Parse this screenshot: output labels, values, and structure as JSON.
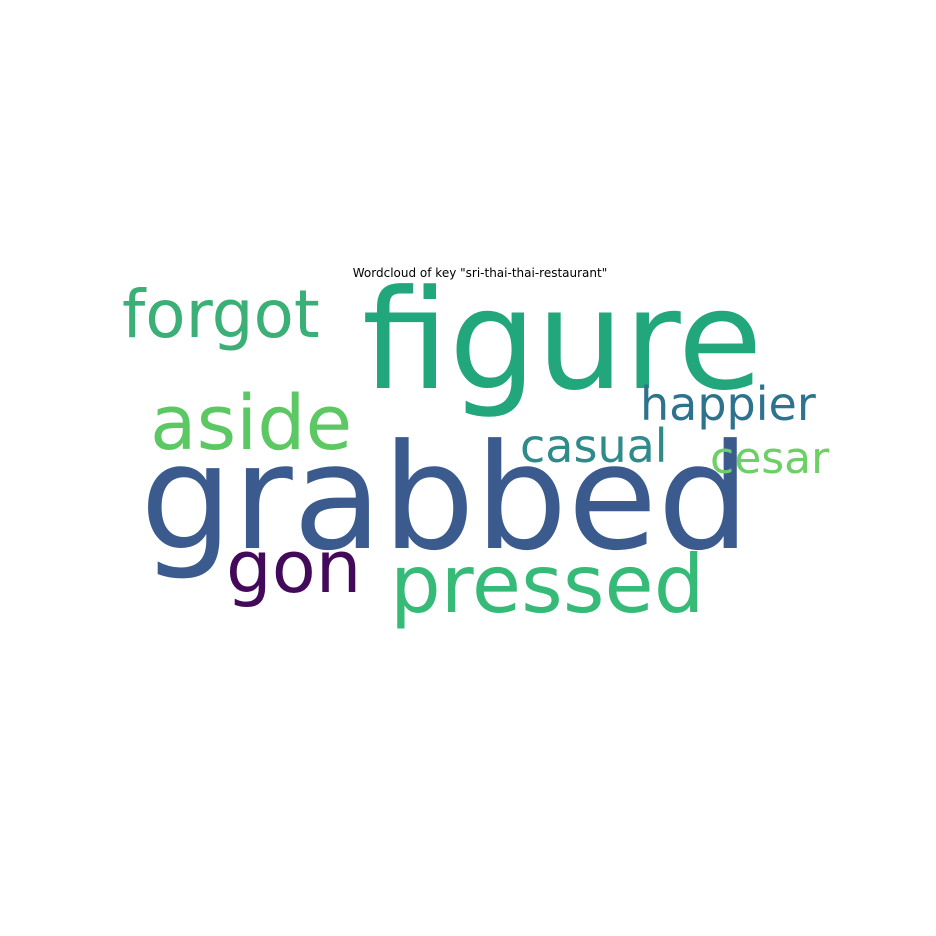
{
  "chart_data": {
    "type": "wordcloud",
    "title": "Wordcloud of key \"sri-thai-thai-restaurant\"",
    "background": "#ffffff",
    "words": [
      {
        "text": "grabbed",
        "weight": 1.0,
        "color": "#3b5b8e"
      },
      {
        "text": "figure",
        "weight": 0.95,
        "color": "#22a67c"
      },
      {
        "text": "pressed",
        "weight": 0.58,
        "color": "#35bb77"
      },
      {
        "text": "aside",
        "weight": 0.55,
        "color": "#5cc863"
      },
      {
        "text": "gon",
        "weight": 0.52,
        "color": "#440a5a"
      },
      {
        "text": "forgot",
        "weight": 0.48,
        "color": "#3aaf76"
      },
      {
        "text": "happier",
        "weight": 0.34,
        "color": "#2e738e"
      },
      {
        "text": "casual",
        "weight": 0.34,
        "color": "#2f8a8a"
      },
      {
        "text": "cesar",
        "weight": 0.32,
        "color": "#6cd066"
      }
    ]
  }
}
